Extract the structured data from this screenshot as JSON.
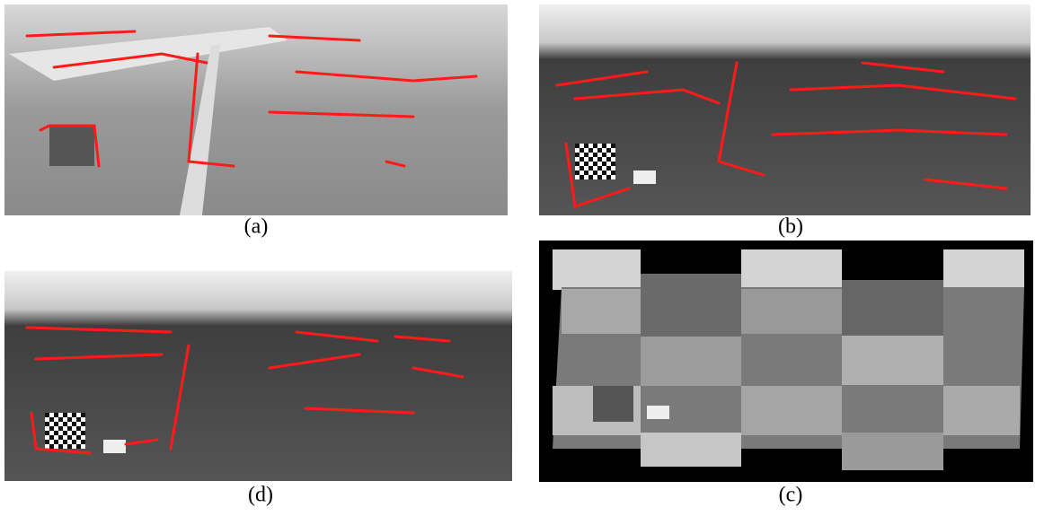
{
  "figure": {
    "panels": [
      {
        "caption": "(a)"
      },
      {
        "caption": "(b)"
      },
      {
        "caption": "(d)"
      },
      {
        "caption": "(c)"
      }
    ]
  }
}
